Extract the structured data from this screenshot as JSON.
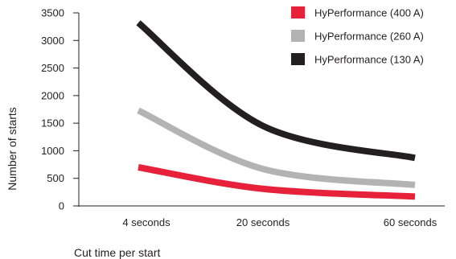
{
  "chart_data": {
    "type": "line",
    "title": "",
    "xlabel": "Cut time per start",
    "ylabel": "Number of starts",
    "categories": [
      "4 seconds",
      "20 seconds",
      "60 seconds"
    ],
    "yticks": [
      0,
      500,
      1000,
      1500,
      2000,
      2500,
      3000,
      3500
    ],
    "ylim": [
      0,
      3500
    ],
    "grid": false,
    "legend_position": "top-right",
    "series": [
      {
        "name": "HyPerformance (400 A)",
        "color": "#e8213a",
        "values": [
          700,
          310,
          170
        ]
      },
      {
        "name": "HyPerformance (260 A)",
        "color": "#b3b3b3",
        "values": [
          1730,
          670,
          380
        ]
      },
      {
        "name": "HyPerformance (130 A)",
        "color": "#231f20",
        "values": [
          3320,
          1450,
          870
        ]
      }
    ]
  }
}
